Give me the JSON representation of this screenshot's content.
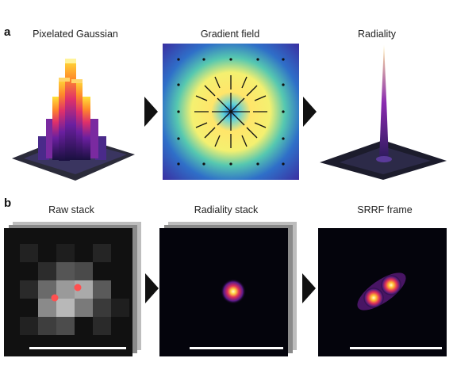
{
  "panel_a": {
    "letter": "a",
    "titles": {
      "pixelated": "Pixelated Gaussian",
      "gradient": "Gradient field",
      "radiality": "Radiality"
    }
  },
  "panel_b": {
    "letter": "b",
    "titles": {
      "raw": "Raw stack",
      "radiality_stack": "Radiality stack",
      "srrf": "SRRF frame"
    }
  },
  "colors": {
    "gradient_center": "#fff07a",
    "gradient_edge": "#3b2a9e",
    "arrow": "#111111"
  },
  "icons": [
    "right-arrow-icon"
  ]
}
